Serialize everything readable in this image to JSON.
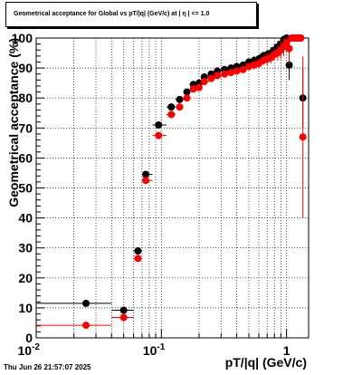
{
  "title": "Geometrical acceptance for Global vs pT/|q| (GeV/c) at |  η  | <= 1.0",
  "timestamp": "Thu Jun 26 21:57:07 2025",
  "chart_data": {
    "type": "scatter",
    "title": "Geometrical acceptance for Global vs pT/|q| (GeV/c) at |  η  | <= 1.0",
    "xlabel": "pT/|q| (GeV/c)",
    "ylabel": "Geometrical acceptance (%)",
    "xscale": "log",
    "xlim": [
      0.01,
      1.5
    ],
    "ylim": [
      0,
      100
    ],
    "grid": true,
    "x_tick_labels": [
      "10^-2",
      "10^-1",
      "1"
    ],
    "y_tick_labels": [
      "0",
      "10",
      "20",
      "30",
      "40",
      "50",
      "60",
      "70",
      "80",
      "90",
      "100"
    ],
    "series": [
      {
        "color": "#000000",
        "marker": "circle",
        "x": [
          0.025,
          0.05,
          0.065,
          0.075,
          0.095,
          0.12,
          0.14,
          0.16,
          0.18,
          0.2,
          0.22,
          0.25,
          0.28,
          0.32,
          0.36,
          0.4,
          0.45,
          0.5,
          0.55,
          0.6,
          0.65,
          0.7,
          0.75,
          0.8,
          0.85,
          0.9,
          0.95,
          1.0,
          1.05,
          1.1,
          1.15,
          1.2,
          1.3,
          1.35
        ],
        "y": [
          11.5,
          9.2,
          29.0,
          54.5,
          71.0,
          77.0,
          79.5,
          82.0,
          84.5,
          85.0,
          87.0,
          88.0,
          89.0,
          89.5,
          90.0,
          90.5,
          91.0,
          92.0,
          92.5,
          93.0,
          94.0,
          94.5,
          95.0,
          96.0,
          97.0,
          98.0,
          99.5,
          100.0,
          91.0,
          100.0,
          100.0,
          100.0,
          100.0,
          80.0
        ],
        "xlow": [
          0.01,
          0.04,
          0.06,
          0.07,
          0.085,
          0.11,
          0.13,
          0.15,
          0.17,
          0.19,
          0.21,
          0.24,
          0.27,
          0.3,
          0.34,
          0.38,
          0.43,
          0.48,
          0.53,
          0.58,
          0.63,
          0.68,
          0.73,
          0.78,
          0.83,
          0.88,
          0.93,
          0.98,
          1.03,
          1.08,
          1.13,
          1.18,
          1.28,
          1.33
        ],
        "xhigh": [
          0.04,
          0.06,
          0.07,
          0.085,
          0.11,
          0.13,
          0.15,
          0.17,
          0.19,
          0.21,
          0.24,
          0.27,
          0.3,
          0.34,
          0.38,
          0.43,
          0.48,
          0.53,
          0.58,
          0.63,
          0.68,
          0.73,
          0.78,
          0.83,
          0.88,
          0.93,
          0.98,
          1.03,
          1.08,
          1.13,
          1.18,
          1.28,
          1.33,
          1.38
        ],
        "yerr": [
          0.5,
          0.5,
          1.0,
          1.0,
          1.0,
          0.8,
          0.8,
          0.8,
          0.8,
          0.8,
          0.8,
          0.8,
          0.8,
          1.0,
          1.0,
          1.0,
          1.0,
          1.2,
          1.5,
          1.5,
          1.5,
          1.5,
          2.0,
          2.0,
          2.0,
          2.5,
          3.0,
          0.0,
          5.0,
          0.0,
          0.0,
          0.0,
          0.0,
          10.0
        ]
      },
      {
        "color": "#ff0000",
        "marker": "circle",
        "x": [
          0.025,
          0.05,
          0.065,
          0.075,
          0.095,
          0.12,
          0.14,
          0.16,
          0.18,
          0.2,
          0.22,
          0.25,
          0.28,
          0.32,
          0.36,
          0.4,
          0.45,
          0.5,
          0.55,
          0.6,
          0.65,
          0.7,
          0.75,
          0.8,
          0.85,
          0.9,
          0.95,
          1.0,
          1.05,
          1.1,
          1.15,
          1.2,
          1.25,
          1.3,
          1.35
        ],
        "y": [
          4.2,
          6.8,
          26.5,
          52.5,
          67.5,
          74.5,
          77.0,
          80.0,
          83.0,
          83.5,
          85.5,
          86.5,
          87.5,
          88.0,
          88.5,
          89.0,
          89.5,
          90.5,
          91.0,
          91.5,
          92.5,
          93.0,
          93.5,
          94.5,
          95.0,
          96.0,
          97.0,
          98.5,
          96.5,
          100.0,
          100.0,
          100.0,
          100.0,
          100.0,
          67.0
        ],
        "xlow": [
          0.01,
          0.04,
          0.06,
          0.07,
          0.085,
          0.11,
          0.13,
          0.15,
          0.17,
          0.19,
          0.21,
          0.24,
          0.27,
          0.3,
          0.34,
          0.38,
          0.43,
          0.48,
          0.53,
          0.58,
          0.63,
          0.68,
          0.73,
          0.78,
          0.83,
          0.88,
          0.93,
          0.98,
          1.03,
          1.08,
          1.13,
          1.18,
          1.23,
          1.28,
          1.33
        ],
        "xhigh": [
          0.04,
          0.06,
          0.07,
          0.085,
          0.11,
          0.13,
          0.15,
          0.17,
          0.19,
          0.21,
          0.24,
          0.27,
          0.3,
          0.34,
          0.38,
          0.43,
          0.48,
          0.53,
          0.58,
          0.63,
          0.68,
          0.73,
          0.78,
          0.83,
          0.88,
          0.93,
          0.98,
          1.03,
          1.08,
          1.13,
          1.18,
          1.23,
          1.28,
          1.33,
          1.38
        ],
        "yerr": [
          0.4,
          0.5,
          1.0,
          1.0,
          1.0,
          0.8,
          0.8,
          0.8,
          0.8,
          0.8,
          0.8,
          0.8,
          0.8,
          1.0,
          1.0,
          1.0,
          1.0,
          1.2,
          1.5,
          1.5,
          1.5,
          2.0,
          2.0,
          2.0,
          2.5,
          3.0,
          3.0,
          3.0,
          5.0,
          0.0,
          0.0,
          0.0,
          0.0,
          0.0,
          27.0
        ]
      }
    ]
  }
}
